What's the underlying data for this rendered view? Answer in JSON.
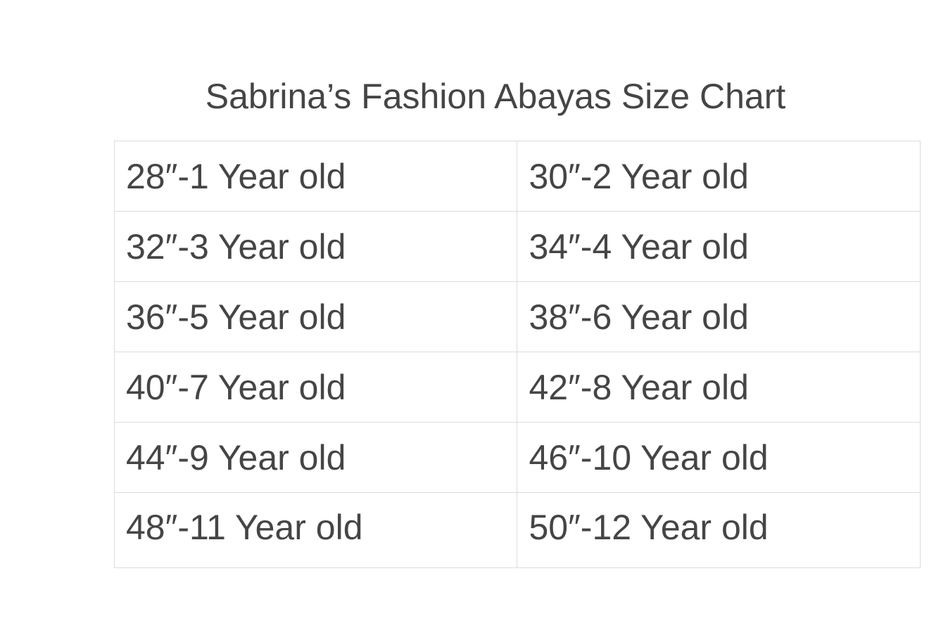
{
  "title": "Sabrina’s Fashion Abayas Size Chart",
  "rows": [
    [
      "28″-1 Year old",
      "30″-2 Year old"
    ],
    [
      "32″-3 Year old",
      "34″-4 Year old"
    ],
    [
      "36″-5 Year old",
      "38″-6 Year old"
    ],
    [
      "40″-7 Year old",
      "42″-8 Year old"
    ],
    [
      "44″-9 Year old",
      "46″-10 Year old"
    ],
    [
      "48″-11 Year old",
      "50″-12 Year old"
    ]
  ]
}
